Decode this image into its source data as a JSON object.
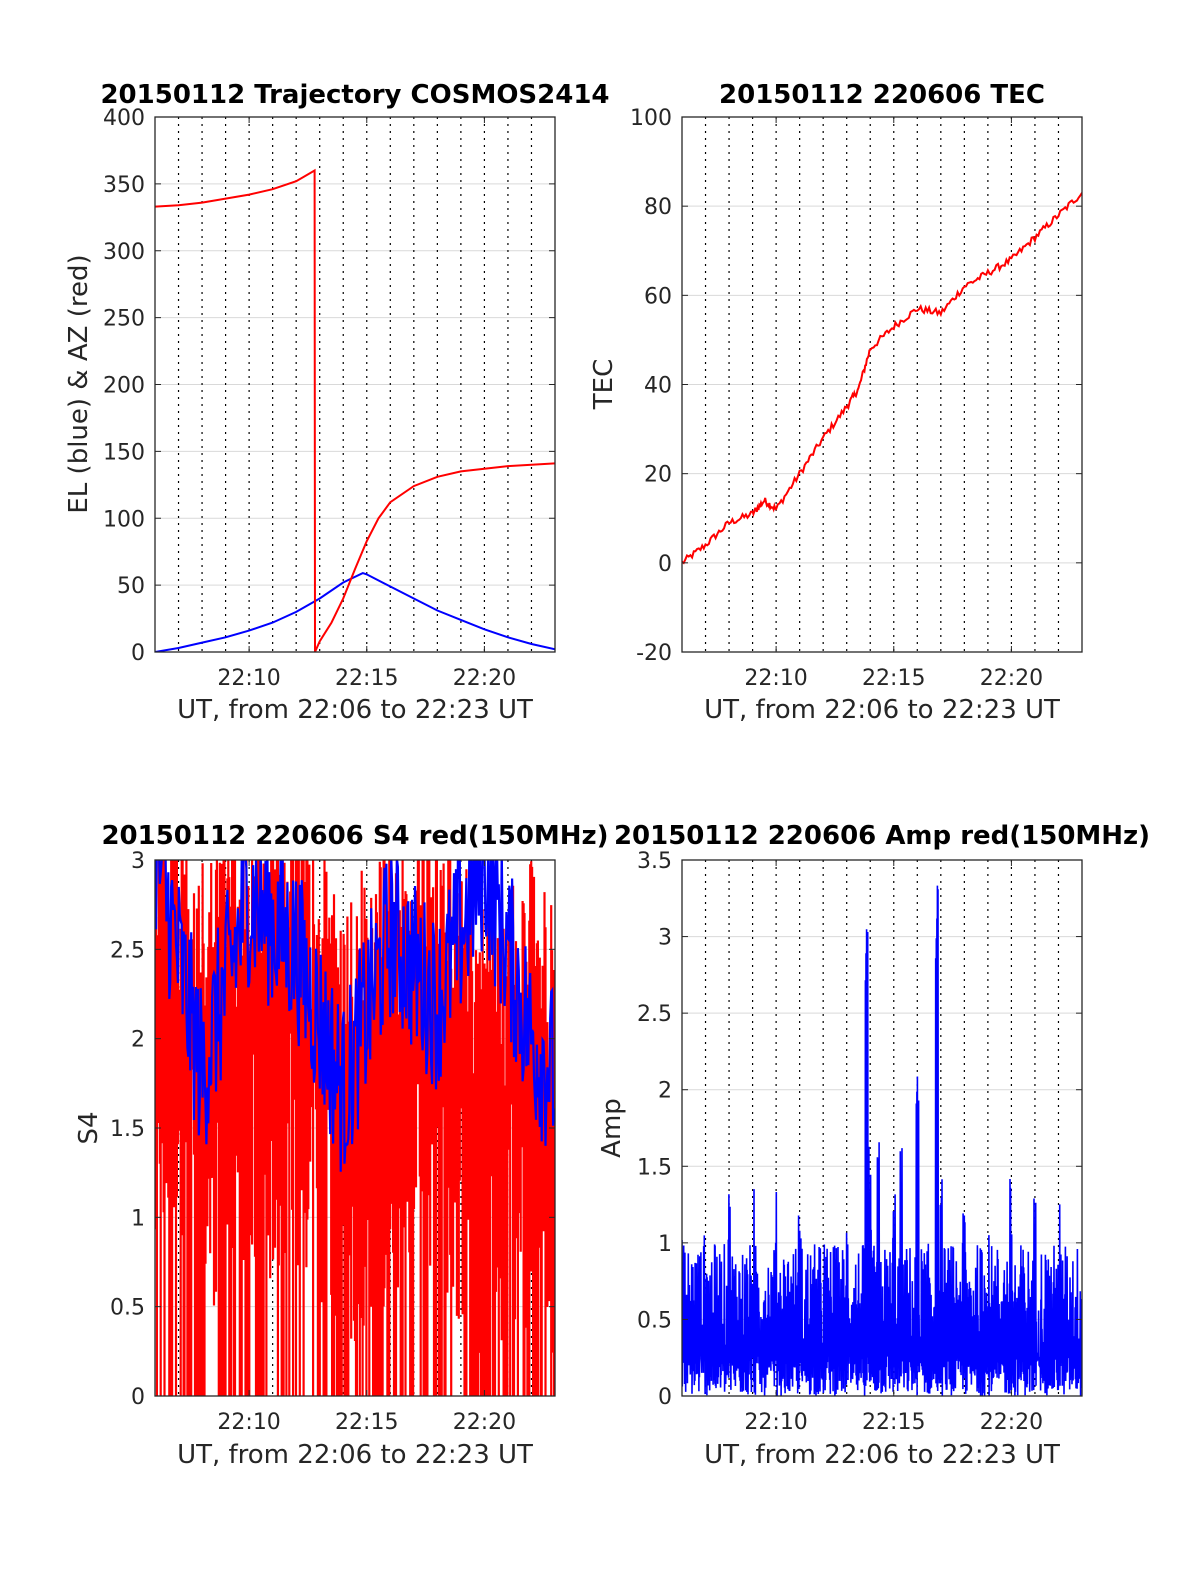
{
  "colors": {
    "red": "#ff0000",
    "blue": "#0000ff",
    "grid": "#000000",
    "hgrid": "#d9d9d9"
  },
  "chart_data": [
    {
      "type": "line",
      "title": "20150112 Trajectory COSMOS2414",
      "xlabel": "UT, from 22:06 to 22:23 UT",
      "ylabel": "EL (blue) & AZ (red)",
      "xlim": [
        "22:06",
        "22:23"
      ],
      "ylim": [
        0,
        400
      ],
      "x_ticks": [
        "22:10",
        "22:15",
        "22:20"
      ],
      "y_ticks": [
        "0",
        "50",
        "100",
        "150",
        "200",
        "250",
        "300",
        "350",
        "400"
      ],
      "grid": "on",
      "series": [
        {
          "color": "#0000ff",
          "x": [
            "22:06",
            "22:07",
            "22:08",
            "22:09",
            "22:10",
            "22:11",
            "22:12",
            "22:13",
            "22:14",
            "22:14:50",
            "22:15",
            "22:16",
            "22:17",
            "22:18",
            "22:19",
            "22:20",
            "22:21",
            "22:22",
            "22:23"
          ],
          "y": [
            0,
            3,
            7,
            11,
            16,
            22,
            30,
            40,
            52,
            59,
            58,
            49,
            40,
            31,
            24,
            17,
            11,
            6,
            2
          ]
        },
        {
          "color": "#ff0000",
          "x": [
            "22:06",
            "22:07",
            "22:08",
            "22:09",
            "22:10",
            "22:11",
            "22:12",
            "22:12:47",
            "22:12:48",
            "22:13",
            "22:13:30",
            "22:14",
            "22:14:30",
            "22:15",
            "22:15:30",
            "22:16",
            "22:17",
            "22:18",
            "22:19",
            "22:20",
            "22:21",
            "22:22",
            "22:23"
          ],
          "y": [
            333,
            334,
            336,
            339,
            342,
            346,
            352,
            360,
            0,
            8,
            22,
            40,
            62,
            83,
            100,
            112,
            124,
            131,
            135,
            137,
            139,
            140,
            141
          ]
        }
      ]
    },
    {
      "type": "line",
      "title": "20150112 220606 TEC",
      "xlabel": "UT, from 22:06 to 22:23 UT",
      "ylabel": "TEC",
      "xlim": [
        "22:06",
        "22:23"
      ],
      "ylim": [
        -20,
        100
      ],
      "x_ticks": [
        "22:10",
        "22:15",
        "22:20"
      ],
      "y_ticks": [
        "-20",
        "0",
        "20",
        "40",
        "60",
        "80",
        "100"
      ],
      "grid": "on",
      "series": [
        {
          "color": "#ff0000",
          "x": [
            "22:06",
            "22:07",
            "22:08",
            "22:09",
            "22:09:30",
            "22:10",
            "22:11",
            "22:12",
            "22:13",
            "22:13:30",
            "22:14",
            "22:15",
            "22:16",
            "22:17",
            "22:18",
            "22:19",
            "22:20",
            "22:21",
            "22:22",
            "22:23"
          ],
          "y": [
            0,
            4,
            9,
            11,
            14,
            12,
            20,
            28,
            35,
            39,
            48,
            53,
            57,
            56,
            62,
            65,
            68,
            73,
            78,
            83
          ]
        }
      ]
    },
    {
      "type": "bar",
      "title": "20150112 220606 S4 red(150MHz)",
      "xlabel": "UT, from 22:06 to 22:23 UT",
      "ylabel": "S4",
      "xlim": [
        "22:06",
        "22:23"
      ],
      "ylim": [
        0,
        3
      ],
      "x_ticks": [
        "22:10",
        "22:15",
        "22:20"
      ],
      "y_ticks": [
        "0",
        "0.5",
        "1",
        "1.5",
        "2",
        "2.5",
        "3"
      ],
      "grid": "on",
      "series": [
        {
          "color": "#ff0000",
          "x": [
            "22:06",
            "22:08",
            "22:10",
            "22:12",
            "22:14",
            "22:16",
            "22:18",
            "22:20",
            "22:22",
            "22:23"
          ],
          "y": [
            2.3,
            1.9,
            2.1,
            2.2,
            1.7,
            2.0,
            2.1,
            1.6,
            1.8,
            1.5
          ]
        },
        {
          "color": "#0000ff",
          "x": [
            "22:06",
            "22:08",
            "22:10",
            "22:12",
            "22:14",
            "22:16",
            "22:18",
            "22:20",
            "22:22",
            "22:23"
          ],
          "y": [
            2.6,
            1.3,
            2.3,
            2.0,
            1.2,
            2.1,
            1.7,
            2.5,
            1.5,
            1.3
          ]
        }
      ]
    },
    {
      "type": "line",
      "title": "20150112 220606 Amp red(150MHz)",
      "xlabel": "UT, from 22:06 to 22:23 UT",
      "ylabel": "Amp",
      "xlim": [
        "22:06",
        "22:23"
      ],
      "ylim": [
        0,
        3.5
      ],
      "x_ticks": [
        "22:10",
        "22:15",
        "22:20"
      ],
      "y_ticks": [
        "0",
        "0.5",
        "1",
        "1.5",
        "2",
        "2.5",
        "3",
        "3.5"
      ],
      "grid": "on",
      "series": [
        {
          "color": "#0000ff",
          "x": [
            "22:06",
            "22:07",
            "22:08",
            "22:09",
            "22:10",
            "22:11",
            "22:12",
            "22:13",
            "22:13:50",
            "22:14",
            "22:14:20",
            "22:15",
            "22:15:20",
            "22:16",
            "22:16:50",
            "22:17",
            "22:18",
            "22:19",
            "22:20",
            "22:21",
            "22:22",
            "22:23"
          ],
          "y": [
            1.15,
            1.15,
            1.3,
            1.25,
            1.2,
            1.15,
            0.95,
            1.1,
            3.05,
            1.5,
            1.55,
            1.3,
            1.5,
            2.1,
            3.35,
            1.3,
            1.2,
            1.5,
            1.3,
            1.2,
            1.2,
            1.45
          ]
        }
      ]
    }
  ]
}
